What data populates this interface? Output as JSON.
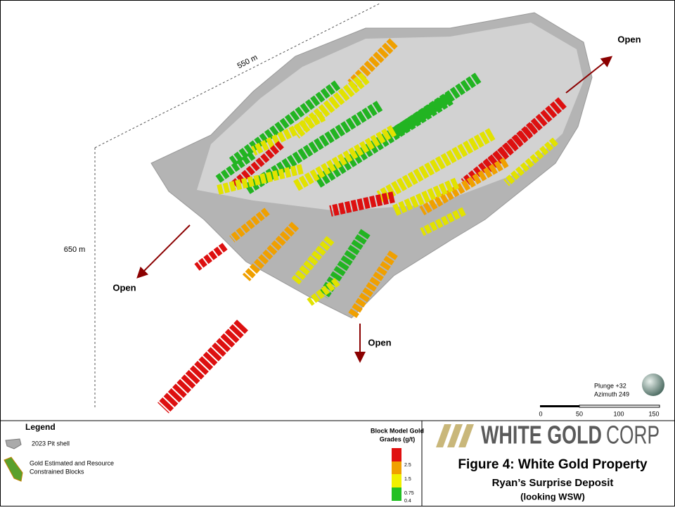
{
  "figure": {
    "dimensions": {
      "length": "550 m",
      "depth": "650 m"
    },
    "open_labels": [
      "Open",
      "Open",
      "Open"
    ],
    "orientation": {
      "plunge": "Plunge +32",
      "azimuth": "Azimuth 249"
    },
    "scale_bar": {
      "ticks": [
        "0",
        "50",
        "100",
        "150"
      ]
    }
  },
  "legend": {
    "title": "Legend",
    "items": [
      "2023 Pit shell",
      "Gold Estimated and Resource",
      "Constrained Blocks"
    ]
  },
  "grade_scale": {
    "title": [
      "Block Model Gold",
      "Grades (g/t)"
    ],
    "labels": [
      "2.5",
      "1.5",
      "0.75",
      "0.4"
    ]
  },
  "logo": {
    "bold": "WHITE GOLD",
    "light": "CORP"
  },
  "caption": {
    "title": "Figure 4: White Gold Property",
    "subtitle": "Ryan’s Surprise Deposit",
    "note": "(looking WSW)"
  }
}
